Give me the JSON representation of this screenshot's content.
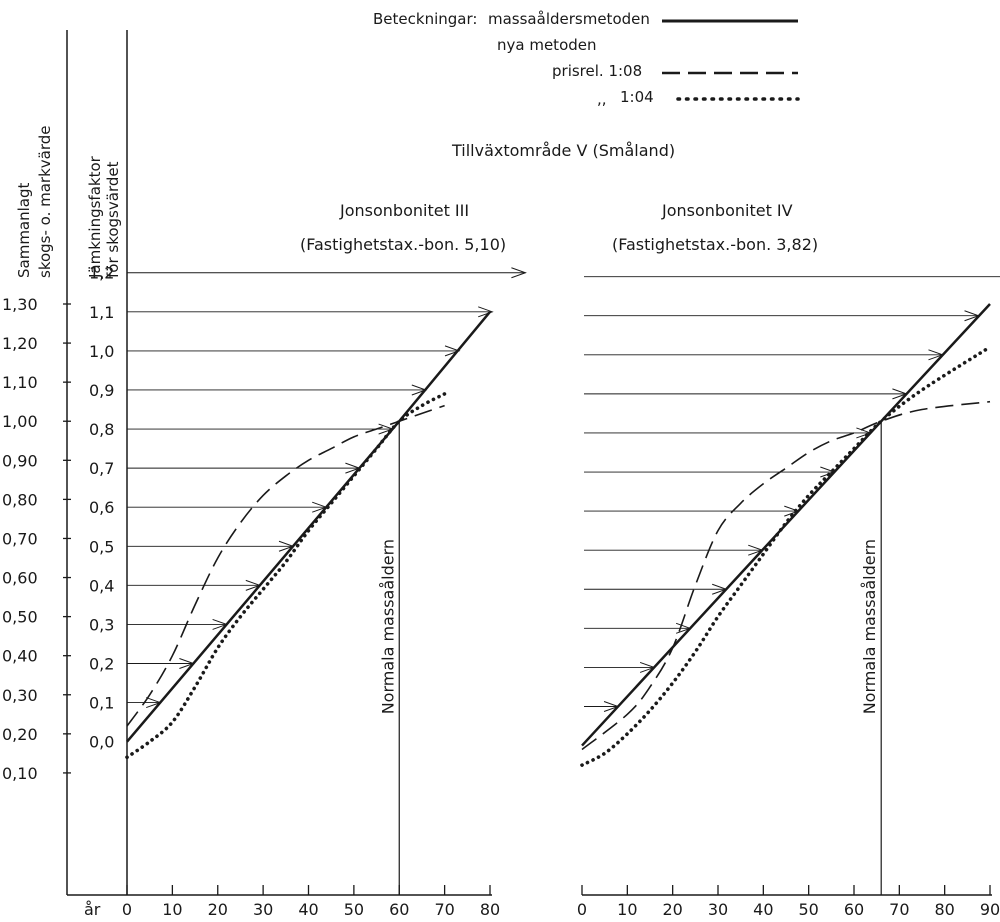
{
  "legend": {
    "heading": "Beteckningar:",
    "solid": "massaåldersmetoden",
    "nya": "nya metoden",
    "dashed": "prisrel. 1:08",
    "dotted_prefix": ",,",
    "dotted": "1:04"
  },
  "region": "Tillväxtområde V (Småland)",
  "axis_labels": {
    "left1_line1": "Sammanlagt",
    "left1_line2": "skogs- o. markvärde",
    "left2_line1": "Jämkningsfaktor",
    "left2_line2": "för skogsvärdet",
    "x_unit": "år"
  },
  "colors": {
    "ink": "#1a1a1a"
  },
  "chart_data": [
    {
      "type": "line",
      "title": "Jonsonbonitet III",
      "subtitle": "(Fastighetstax.-bon. 5,10)",
      "vline_label": "Normala massaåldern",
      "normal_age": 60,
      "x_ticks": [
        0,
        10,
        20,
        30,
        40,
        50,
        60,
        70,
        80
      ],
      "xlim": [
        0,
        80
      ],
      "ylim": [
        0,
        1.3
      ],
      "y_ticks_total": [
        "1,30",
        "1,20",
        "1,10",
        "1,00",
        "0,90",
        "0,80",
        "0,70",
        "0,60",
        "0,50",
        "0,40",
        "0,30",
        "0,20",
        "0,10"
      ],
      "y_ticks_factor": [
        "1,2",
        "1,1",
        "1,0",
        "0,9",
        "0,8",
        "0,7",
        "0,6",
        "0,5",
        "0,4",
        "0,3",
        "0,2",
        "0,1",
        "0,0"
      ],
      "series": [
        {
          "name": "massaåldersmetoden",
          "style": "solid",
          "x": [
            0,
            60,
            80
          ],
          "y": [
            0.18,
            1.0,
            1.28
          ]
        },
        {
          "name": "prisrel. 1:08",
          "style": "dashed",
          "x": [
            0,
            5,
            10,
            15,
            20,
            25,
            30,
            35,
            40,
            45,
            50,
            55,
            60,
            65,
            70
          ],
          "y": [
            0.22,
            0.3,
            0.4,
            0.53,
            0.65,
            0.74,
            0.81,
            0.86,
            0.9,
            0.93,
            0.96,
            0.98,
            1.0,
            1.02,
            1.04
          ]
        },
        {
          "name": "1:04",
          "style": "dotted",
          "x": [
            0,
            5,
            10,
            15,
            20,
            25,
            30,
            35,
            40,
            45,
            50,
            55,
            60,
            65,
            70
          ],
          "y": [
            0.14,
            0.18,
            0.23,
            0.32,
            0.42,
            0.5,
            0.57,
            0.64,
            0.72,
            0.79,
            0.86,
            0.93,
            1.0,
            1.04,
            1.07
          ]
        }
      ],
      "arrows": [
        0.1,
        0.2,
        0.3,
        0.4,
        0.5,
        0.6,
        0.7,
        0.8,
        0.9,
        1.0,
        1.1,
        1.2
      ]
    },
    {
      "type": "line",
      "title": "Jonsonbonitet IV",
      "subtitle": "(Fastighetstax.-bon. 3,82)",
      "vline_label": "Normala massaåldern",
      "normal_age": 66,
      "x_ticks": [
        0,
        10,
        20,
        30,
        40,
        50,
        60,
        70,
        80,
        90
      ],
      "xlim": [
        0,
        90
      ],
      "ylim": [
        0,
        1.3
      ],
      "series": [
        {
          "name": "massaåldersmetoden",
          "style": "solid",
          "x": [
            0,
            66,
            90
          ],
          "y": [
            0.17,
            1.0,
            1.3
          ]
        },
        {
          "name": "prisrel. 1:08",
          "style": "dashed",
          "x": [
            0,
            10,
            15,
            20,
            25,
            30,
            35,
            40,
            45,
            50,
            55,
            60,
            66,
            75,
            90
          ],
          "y": [
            0.16,
            0.25,
            0.32,
            0.42,
            0.58,
            0.72,
            0.79,
            0.84,
            0.88,
            0.92,
            0.95,
            0.97,
            1.0,
            1.03,
            1.05
          ]
        },
        {
          "name": "1:04",
          "style": "dotted",
          "x": [
            0,
            5,
            10,
            15,
            20,
            25,
            30,
            35,
            40,
            45,
            50,
            55,
            60,
            66,
            75,
            90
          ],
          "y": [
            0.12,
            0.15,
            0.2,
            0.26,
            0.33,
            0.41,
            0.5,
            0.58,
            0.66,
            0.74,
            0.81,
            0.87,
            0.93,
            1.0,
            1.08,
            1.19
          ]
        }
      ],
      "arrows": [
        0.1,
        0.2,
        0.3,
        0.4,
        0.5,
        0.6,
        0.7,
        0.8,
        0.9,
        1.0,
        1.1,
        1.2
      ]
    }
  ]
}
